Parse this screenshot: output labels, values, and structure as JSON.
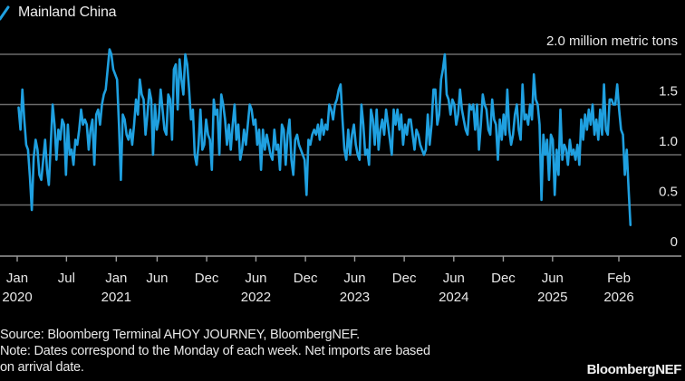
{
  "legend": {
    "label": "Mainland China",
    "color": "#1fa0e0"
  },
  "footer": {
    "source": "Source: Bloomberg Terminal AHOY JOURNEY, BloombergNEF.",
    "note_line1": "Note: Dates correspond to the Monday of each week. Net imports are based",
    "note_line2": "on arrival date.",
    "brand": "BloombergNEF"
  },
  "chart_data": {
    "type": "line",
    "title": "",
    "xlabel": "",
    "ylabel": "million metric tons",
    "unit_label": "2.0 million metric tons",
    "ylim": [
      0,
      2.0
    ],
    "xlim": [
      "2020-01-01",
      "2026-03-01"
    ],
    "grid": true,
    "legend_position": "top-left",
    "yticks": [
      {
        "value": 0,
        "label": "0"
      },
      {
        "value": 0.5,
        "label": "0.5"
      },
      {
        "value": 1.0,
        "label": "1.0"
      },
      {
        "value": 1.5,
        "label": "1.5"
      },
      {
        "value": 2.0,
        "label": "2.0 million metric tons"
      }
    ],
    "xticks": [
      {
        "date": "2020-01-01",
        "label": "Jan",
        "year": "2020"
      },
      {
        "date": "2020-07-01",
        "label": "Jul",
        "year": ""
      },
      {
        "date": "2021-01-01",
        "label": "Jan",
        "year": "2021"
      },
      {
        "date": "2021-06-01",
        "label": "Jun",
        "year": ""
      },
      {
        "date": "2021-12-01",
        "label": "Dec",
        "year": ""
      },
      {
        "date": "2022-06-01",
        "label": "Jun",
        "year": "2022"
      },
      {
        "date": "2022-12-01",
        "label": "Dec",
        "year": ""
      },
      {
        "date": "2023-06-01",
        "label": "Jun",
        "year": "2023"
      },
      {
        "date": "2023-12-01",
        "label": "Dec",
        "year": ""
      },
      {
        "date": "2024-06-01",
        "label": "Jun",
        "year": "2024"
      },
      {
        "date": "2024-12-01",
        "label": "Dec",
        "year": ""
      },
      {
        "date": "2025-06-01",
        "label": "Jun",
        "year": "2025"
      },
      {
        "date": "2026-02-01",
        "label": "Feb",
        "year": "2026"
      }
    ],
    "series": [
      {
        "name": "Mainland China",
        "start": "2020-01-06",
        "frequency": "weekly",
        "values": [
          1.47,
          1.25,
          1.65,
          1.35,
          1.1,
          1.05,
          0.78,
          0.45,
          0.97,
          1.15,
          1.05,
          0.8,
          0.75,
          0.95,
          1.15,
          0.85,
          0.7,
          1.1,
          1.5,
          1.3,
          0.95,
          1.25,
          1.15,
          1.35,
          1.3,
          0.8,
          1.3,
          1.0,
          1.05,
          0.9,
          1.15,
          1.1,
          1.25,
          1.45,
          1.3,
          1.35,
          1.3,
          1.05,
          1.25,
          1.35,
          0.9,
          1.4,
          1.45,
          1.3,
          1.5,
          1.6,
          1.65,
          1.85,
          2.05,
          2.0,
          1.85,
          1.8,
          1.75,
          1.3,
          0.75,
          1.4,
          1.35,
          1.2,
          1.15,
          1.25,
          1.1,
          1.3,
          1.55,
          1.4,
          1.75,
          1.6,
          1.55,
          1.2,
          1.4,
          1.65,
          1.55,
          1.0,
          1.5,
          1.25,
          1.35,
          1.65,
          1.45,
          1.25,
          1.2,
          1.6,
          1.55,
          1.15,
          1.85,
          1.9,
          1.45,
          1.95,
          1.75,
          1.6,
          2.0,
          1.9,
          1.65,
          1.35,
          1.45,
          1.0,
          0.9,
          1.1,
          1.45,
          1.05,
          1.1,
          1.35,
          1.2,
          1.15,
          0.85,
          1.55,
          1.4,
          1.45,
          1.0,
          1.6,
          1.5,
          1.35,
          1.1,
          1.3,
          1.05,
          1.3,
          1.5,
          1.15,
          1.3,
          0.95,
          1.05,
          1.25,
          1.1,
          1.3,
          1.5,
          1.45,
          1.3,
          1.35,
          1.1,
          1.25,
          0.85,
          1.25,
          1.05,
          1.2,
          1.1,
          1.0,
          0.95,
          1.25,
          1.05,
          1.1,
          0.85,
          1.3,
          1.25,
          0.9,
          1.2,
          1.35,
          0.95,
          0.8,
          1.15,
          1.2,
          1.1,
          1.05,
          1.0,
          0.95,
          0.6,
          1.15,
          1.1,
          1.2,
          1.25,
          1.2,
          1.3,
          1.15,
          1.35,
          1.2,
          1.3,
          1.25,
          1.5,
          1.45,
          1.35,
          1.5,
          1.55,
          1.65,
          1.7,
          1.35,
          1.05,
          0.95,
          1.25,
          1.0,
          1.2,
          1.3,
          1.1,
          1.0,
          0.95,
          1.5,
          1.3,
          1.0,
          1.05,
          0.9,
          1.45,
          1.35,
          1.1,
          1.45,
          1.05,
          1.25,
          1.35,
          1.2,
          1.45,
          1.3,
          1.15,
          1.0,
          1.45,
          1.3,
          1.45,
          1.25,
          1.4,
          1.1,
          1.3,
          1.2,
          1.35,
          1.35,
          1.2,
          1.05,
          1.25,
          1.2,
          1.1,
          1.05,
          1.0,
          1.05,
          1.4,
          1.1,
          1.3,
          1.65,
          1.65,
          1.3,
          1.4,
          1.75,
          1.85,
          2.0,
          1.6,
          1.55,
          1.4,
          1.55,
          1.5,
          1.3,
          1.4,
          1.65,
          1.45,
          1.35,
          1.25,
          1.2,
          1.5,
          1.45,
          1.5,
          1.25,
          1.5,
          1.05,
          1.3,
          1.6,
          1.5,
          1.45,
          1.25,
          1.2,
          1.55,
          1.35,
          1.3,
          0.95,
          1.35,
          1.15,
          1.4,
          1.2,
          1.65,
          1.25,
          1.1,
          1.2,
          1.4,
          1.5,
          1.25,
          1.15,
          1.7,
          1.35,
          1.4,
          1.3,
          1.5,
          1.35,
          1.8,
          1.55,
          1.5,
          1.3,
          0.55,
          1.2,
          1.0,
          1.15,
          0.75,
          1.2,
          1.15,
          0.6,
          1.05,
          0.8,
          1.45,
          0.95,
          1.1,
          1.05,
          0.9,
          1.15,
          1.0,
          1.05,
          0.95,
          1.1,
          0.9,
          1.35,
          1.15,
          1.4,
          1.25,
          1.45,
          1.3,
          1.5,
          1.2,
          1.35,
          1.15,
          1.45,
          1.2,
          1.7,
          1.25,
          1.2,
          1.55,
          1.55,
          1.5,
          1.5,
          1.7,
          1.45,
          1.25,
          1.2,
          0.8,
          1.05,
          0.65,
          0.3
        ]
      }
    ]
  }
}
